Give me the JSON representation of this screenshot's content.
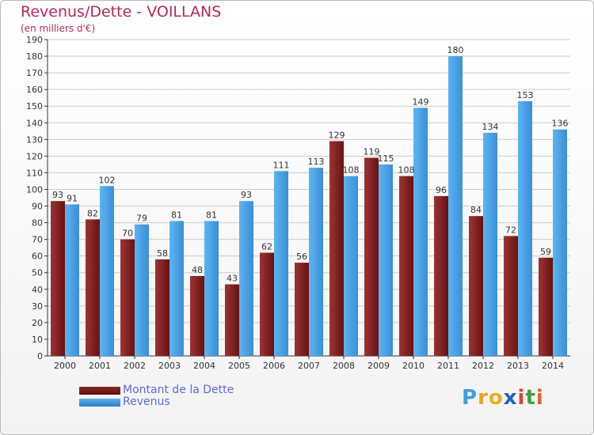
{
  "colors": {
    "title": "#b52a5a",
    "debt_top": "#8b2a2a",
    "debt_bottom": "#5a0b0b",
    "rev_top": "#5bb0ec",
    "rev_bottom": "#2a7fc7",
    "grid": "#cccccc",
    "legend_text": "#5b6bd8"
  },
  "chart_data": {
    "type": "bar",
    "title": "Revenus/Dette - VOILLANS",
    "subtitle": "(en milliers d'€)",
    "categories": [
      "2000",
      "2001",
      "2002",
      "2003",
      "2004",
      "2005",
      "2006",
      "2007",
      "2008",
      "2009",
      "2010",
      "2011",
      "2012",
      "2013",
      "2014"
    ],
    "series": [
      {
        "name": "Montant de la Dette",
        "values": [
          93,
          82,
          70,
          58,
          48,
          43,
          62,
          56,
          129,
          119,
          108,
          96,
          84,
          72,
          59
        ]
      },
      {
        "name": "Revenus",
        "values": [
          91,
          102,
          79,
          81,
          81,
          93,
          111,
          113,
          108,
          115,
          149,
          180,
          134,
          153,
          136
        ]
      }
    ],
    "ylim": [
      0,
      190
    ],
    "ytick_step": 10,
    "grid": true,
    "legend": "bottom-left"
  },
  "legend": {
    "debt_label": "Montant de la Dette",
    "rev_label": "Revenus"
  },
  "logo": {
    "letters": [
      "P",
      "r",
      "o",
      "x",
      "i",
      "t",
      "i"
    ],
    "colors": [
      "#3aa0e0",
      "#f0a020",
      "#e8b020",
      "#2060c0",
      "#e04040",
      "#40a040",
      "#e86030"
    ]
  }
}
